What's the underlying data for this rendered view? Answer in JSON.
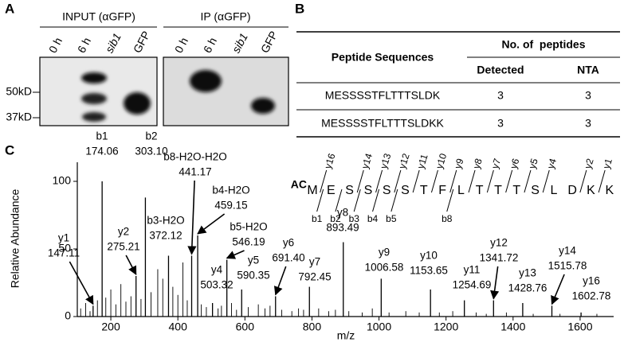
{
  "panel_a": {
    "label": "A",
    "blots": [
      {
        "title": "INPUT (αGFP)",
        "lanes": [
          "0 h",
          "6 h",
          "sib1",
          "GFP"
        ]
      },
      {
        "title": "IP (αGFP)",
        "lanes": [
          "0 h",
          "6 h",
          "sib1",
          "GFP"
        ]
      }
    ],
    "markers": [
      "50kD",
      "37kD"
    ]
  },
  "panel_b": {
    "label": "B",
    "table": {
      "header": {
        "sequence": "Peptide Sequences",
        "group": "No. of  peptides",
        "columns": [
          "Detected",
          "NTA"
        ]
      },
      "rows": [
        [
          "MESSSSTFLTTTSLDK",
          3,
          3
        ],
        [
          "MESSSSTFLTTTSLDKK",
          3,
          3
        ]
      ]
    }
  },
  "chart_data": {
    "type": "spectrum",
    "label": "C",
    "ylabel": "Relative Abundance",
    "xlabel": "m/z",
    "xlim": [
      100,
      1700
    ],
    "xticks": [
      200,
      400,
      600,
      800,
      1000,
      1200,
      1400,
      1600
    ],
    "ylim": [
      0,
      112
    ],
    "yticks": [
      0,
      50,
      100
    ],
    "color": "#000000",
    "peaks": {
      "ions": [
        "y1",
        "b1",
        "y2",
        "b2",
        "b3-H2O",
        "b8-H2O-H2O",
        "b4-H2O",
        "y4",
        "b5-H2O",
        "y5",
        "y6",
        "y7",
        "y8",
        "y9",
        "y10",
        "y11",
        "y12",
        "y13",
        "y14",
        "y16"
      ],
      "x": [
        147.11,
        174.06,
        275.21,
        303.1,
        372.12,
        441.17,
        459.15,
        503.32,
        546.19,
        590.35,
        691.4,
        792.45,
        893.49,
        1006.58,
        1153.65,
        1254.69,
        1341.72,
        1428.76,
        1515.78,
        1602.78
      ],
      "x_labels": [
        "147.11",
        "174.06",
        "275.21",
        "303.10",
        "372.12",
        "441.17",
        "459.15",
        "503.32",
        "546.19",
        "590.35",
        "691.40",
        "792.45",
        "893.49",
        "1006.58",
        "1153.65",
        "1254.69",
        "1341.72",
        "1428.76",
        "1515.78",
        "1602.78"
      ],
      "values": [
        8,
        100,
        30,
        88,
        45,
        45,
        60,
        10,
        42,
        20,
        15,
        22,
        55,
        28,
        20,
        12,
        12,
        10,
        8,
        3
      ]
    },
    "minor_peaks": {
      "x": [
        110,
        125,
        138,
        160,
        185,
        200,
        215,
        230,
        245,
        260,
        290,
        320,
        340,
        355,
        385,
        400,
        415,
        428,
        470,
        485,
        520,
        530,
        560,
        575,
        610,
        640,
        660,
        675,
        710,
        740,
        760,
        775,
        820,
        850,
        870,
        910,
        950,
        980,
        1030,
        1080,
        1120,
        1180,
        1220,
        1290,
        1320,
        1380,
        1460,
        1540,
        1650
      ],
      "values": [
        6,
        10,
        4,
        12,
        14,
        20,
        9,
        24,
        11,
        15,
        13,
        18,
        35,
        28,
        22,
        16,
        40,
        12,
        9,
        7,
        6,
        8,
        10,
        5,
        7,
        9,
        6,
        8,
        5,
        4,
        6,
        5,
        6,
        4,
        5,
        4,
        3,
        6,
        3,
        4,
        3,
        3,
        4,
        3,
        2,
        3,
        2,
        2,
        2
      ]
    },
    "peptide": {
      "modification": "AC",
      "residues": [
        "M",
        "E",
        "S",
        "S",
        "S",
        "S",
        "T",
        "F",
        "L",
        "T",
        "T",
        "T",
        "S",
        "L",
        "D",
        "K",
        "K"
      ],
      "y_ions": [
        "y16",
        "y14",
        "y13",
        "y12",
        "y11",
        "y10",
        "y9",
        "y8",
        "y7",
        "y6",
        "y5",
        "y4",
        "y2",
        "y1"
      ],
      "b_ions": [
        "b1",
        "b2",
        "b3",
        "b4",
        "b5",
        "b8"
      ]
    }
  }
}
